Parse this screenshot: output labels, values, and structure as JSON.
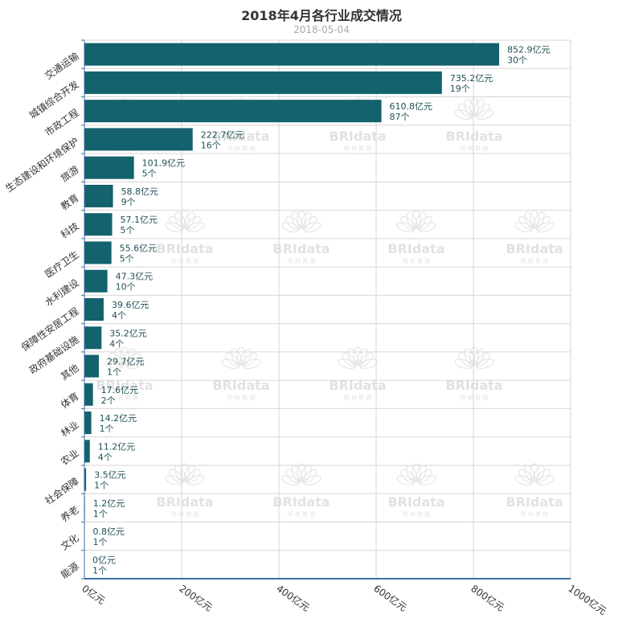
{
  "colors": {
    "bar": "#13626e",
    "grid": "#d6d6d6",
    "axis": "#3a6ea5",
    "label": "#1f4f55"
  },
  "watermark": {
    "brand": "BRIdata",
    "sub": "明 树 数 据"
  },
  "chart_data": {
    "type": "bar",
    "orientation": "horizontal",
    "title": "2018年4月各行业成交情况",
    "subtitle": "2018-05-04",
    "xlim": [
      0,
      1000
    ],
    "xticks": [
      0,
      200,
      400,
      600,
      800,
      1000
    ],
    "xtick_labels": [
      "0亿元",
      "200亿元",
      "400亿元",
      "600亿元",
      "800亿元",
      "1000亿元"
    ],
    "grid": true,
    "categories": [
      "交通运输",
      "城镇综合开发",
      "市政工程",
      "生态建设和环境保护",
      "旅游",
      "教育",
      "科技",
      "医疗卫生",
      "水利建设",
      "保障性安居工程",
      "政府基础设施",
      "其他",
      "体育",
      "林业",
      "农业",
      "社会保障",
      "养老",
      "文化",
      "能源"
    ],
    "series": [
      {
        "values": [
          852.9,
          735.2,
          610.8,
          222.7,
          101.9,
          58.8,
          57.1,
          55.6,
          47.3,
          39.6,
          35.2,
          29.7,
          17.6,
          14.2,
          11.2,
          3.5,
          1.2,
          0.8,
          0
        ],
        "value_labels": [
          "852.9亿元",
          "735.2亿元",
          "610.8亿元",
          "222.7亿元",
          "101.9亿元",
          "58.8亿元",
          "57.1亿元",
          "55.6亿元",
          "47.3亿元",
          "39.6亿元",
          "35.2亿元",
          "29.7亿元",
          "17.6亿元",
          "14.2亿元",
          "11.2亿元",
          "3.5亿元",
          "1.2亿元",
          "0.8亿元",
          "0亿元"
        ],
        "counts": [
          30,
          19,
          87,
          16,
          5,
          9,
          5,
          5,
          10,
          4,
          4,
          1,
          2,
          1,
          4,
          1,
          1,
          1,
          1
        ],
        "count_labels": [
          "30个",
          "19个",
          "87个",
          "16个",
          "5个",
          "9个",
          "5个",
          "5个",
          "10个",
          "4个",
          "4个",
          "1个",
          "2个",
          "1个",
          "4个",
          "1个",
          "1个",
          "1个",
          "1个"
        ]
      }
    ]
  }
}
